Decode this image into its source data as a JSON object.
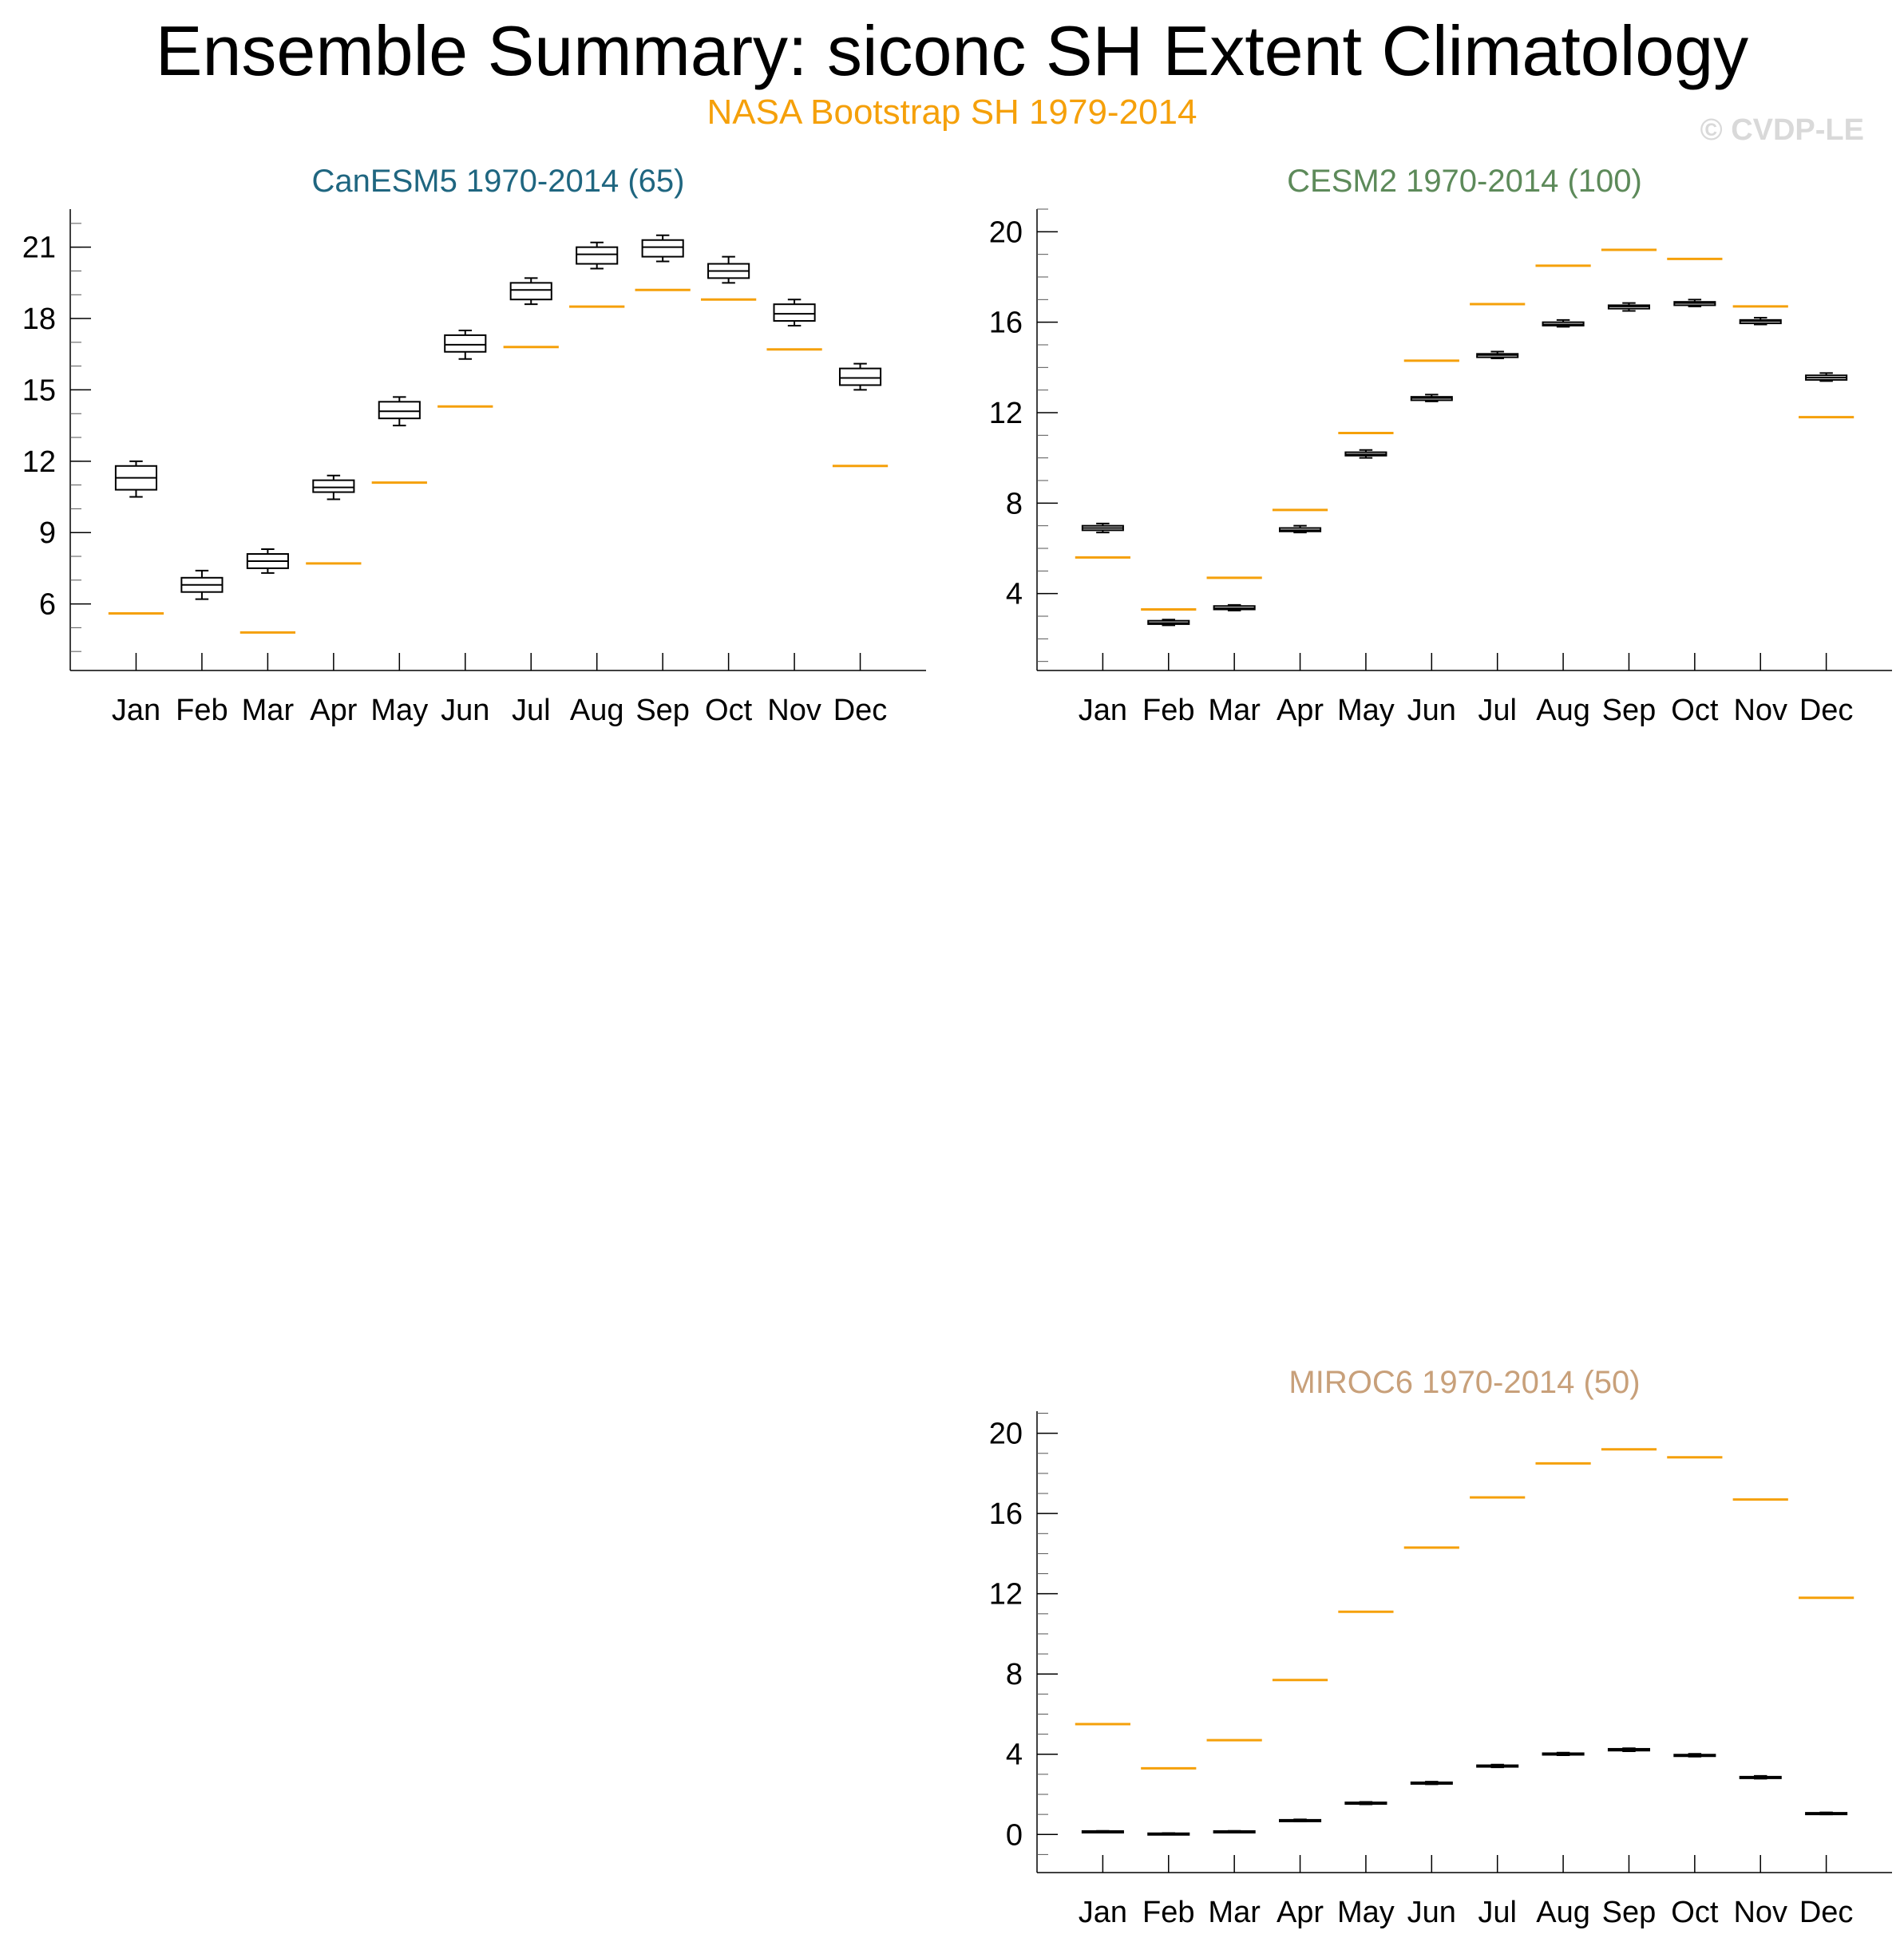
{
  "header": {
    "title": "Ensemble Summary: siconc SH Extent Climatology",
    "subtitle": "NASA Bootstrap SH 1979-2014",
    "watermark": "© CVDP-LE"
  },
  "colors": {
    "observation": "#f5a00a",
    "box": "#000000"
  },
  "chart_data": [
    {
      "type": "box",
      "title": "CanESM5 1970-2014 (65)",
      "title_color": "#1f6680",
      "categories": [
        "Jan",
        "Feb",
        "Mar",
        "Apr",
        "May",
        "Jun",
        "Jul",
        "Aug",
        "Sep",
        "Oct",
        "Nov",
        "Dec"
      ],
      "ylim": [
        3.2,
        22.6
      ],
      "yticks": [
        6,
        9,
        12,
        15,
        18,
        21
      ],
      "minor_step": 1,
      "observation": [
        5.6,
        null,
        4.8,
        7.7,
        11.1,
        14.3,
        16.8,
        18.5,
        19.2,
        18.8,
        16.7,
        11.8
      ],
      "boxes": [
        {
          "min": 10.5,
          "q1": 10.8,
          "median": 11.3,
          "q3": 11.8,
          "max": 12.0
        },
        {
          "min": 6.2,
          "q1": 6.5,
          "median": 6.8,
          "q3": 7.1,
          "max": 7.4
        },
        {
          "min": 7.3,
          "q1": 7.5,
          "median": 7.8,
          "q3": 8.1,
          "max": 8.3
        },
        {
          "min": 10.4,
          "q1": 10.7,
          "median": 10.9,
          "q3": 11.2,
          "max": 11.4
        },
        {
          "min": 13.5,
          "q1": 13.8,
          "median": 14.1,
          "q3": 14.5,
          "max": 14.7
        },
        {
          "min": 16.3,
          "q1": 16.6,
          "median": 16.9,
          "q3": 17.3,
          "max": 17.5
        },
        {
          "min": 18.6,
          "q1": 18.8,
          "median": 19.2,
          "q3": 19.5,
          "max": 19.7
        },
        {
          "min": 20.1,
          "q1": 20.3,
          "median": 20.7,
          "q3": 21.0,
          "max": 21.2
        },
        {
          "min": 20.4,
          "q1": 20.6,
          "median": 21.0,
          "q3": 21.3,
          "max": 21.5
        },
        {
          "min": 19.5,
          "q1": 19.7,
          "median": 20.0,
          "q3": 20.3,
          "max": 20.6
        },
        {
          "min": 17.7,
          "q1": 17.9,
          "median": 18.2,
          "q3": 18.6,
          "max": 18.8
        },
        {
          "min": 15.0,
          "q1": 15.2,
          "median": 15.5,
          "q3": 15.9,
          "max": 16.1
        }
      ]
    },
    {
      "type": "box",
      "title": "CESM2 1970-2014 (100)",
      "title_color": "#5d8a5a",
      "categories": [
        "Jan",
        "Feb",
        "Mar",
        "Apr",
        "May",
        "Jun",
        "Jul",
        "Aug",
        "Sep",
        "Oct",
        "Nov",
        "Dec"
      ],
      "ylim": [
        0.6,
        21.0
      ],
      "yticks": [
        4,
        8,
        12,
        16,
        20
      ],
      "minor_step": 1,
      "observation": [
        5.6,
        3.3,
        4.7,
        7.7,
        11.1,
        14.3,
        16.8,
        18.5,
        19.2,
        18.8,
        16.7,
        11.8
      ],
      "boxes": [
        {
          "min": 6.7,
          "q1": 6.8,
          "median": 6.9,
          "q3": 7.0,
          "max": 7.1
        },
        {
          "min": 2.6,
          "q1": 2.65,
          "median": 2.7,
          "q3": 2.8,
          "max": 2.85
        },
        {
          "min": 3.25,
          "q1": 3.3,
          "median": 3.35,
          "q3": 3.45,
          "max": 3.5
        },
        {
          "min": 6.7,
          "q1": 6.75,
          "median": 6.8,
          "q3": 6.9,
          "max": 7.0
        },
        {
          "min": 10.0,
          "q1": 10.1,
          "median": 10.15,
          "q3": 10.25,
          "max": 10.35
        },
        {
          "min": 12.5,
          "q1": 12.55,
          "median": 12.65,
          "q3": 12.7,
          "max": 12.8
        },
        {
          "min": 14.4,
          "q1": 14.45,
          "median": 14.55,
          "q3": 14.6,
          "max": 14.7
        },
        {
          "min": 15.8,
          "q1": 15.85,
          "median": 15.9,
          "q3": 16.0,
          "max": 16.1
        },
        {
          "min": 16.5,
          "q1": 16.6,
          "median": 16.7,
          "q3": 16.75,
          "max": 16.85
        },
        {
          "min": 16.7,
          "q1": 16.75,
          "median": 16.85,
          "q3": 16.9,
          "max": 17.0
        },
        {
          "min": 15.9,
          "q1": 15.95,
          "median": 16.05,
          "q3": 16.1,
          "max": 16.2
        },
        {
          "min": 13.4,
          "q1": 13.45,
          "median": 13.55,
          "q3": 13.65,
          "max": 13.75
        }
      ]
    },
    {
      "type": "box",
      "title": "MIROC6 1970-2014 (50)",
      "title_color": "#c8a07a",
      "categories": [
        "Jan",
        "Feb",
        "Mar",
        "Apr",
        "May",
        "Jun",
        "Jul",
        "Aug",
        "Sep",
        "Oct",
        "Nov",
        "Dec"
      ],
      "ylim": [
        -1.9,
        21.1
      ],
      "yticks": [
        0,
        4,
        8,
        12,
        16,
        20
      ],
      "minor_step": 1,
      "observation": [
        5.5,
        3.3,
        4.7,
        7.7,
        11.1,
        14.3,
        16.8,
        18.5,
        19.2,
        18.8,
        16.7,
        11.8
      ],
      "boxes": [
        {
          "min": 0.12,
          "q1": 0.14,
          "median": 0.15,
          "q3": 0.17,
          "max": 0.18
        },
        {
          "min": 0.03,
          "q1": 0.04,
          "median": 0.05,
          "q3": 0.06,
          "max": 0.07
        },
        {
          "min": 0.12,
          "q1": 0.14,
          "median": 0.15,
          "q3": 0.17,
          "max": 0.18
        },
        {
          "min": 0.65,
          "q1": 0.67,
          "median": 0.7,
          "q3": 0.73,
          "max": 0.75
        },
        {
          "min": 1.5,
          "q1": 1.52,
          "median": 1.55,
          "q3": 1.6,
          "max": 1.62
        },
        {
          "min": 2.5,
          "q1": 2.52,
          "median": 2.55,
          "q3": 2.6,
          "max": 2.63
        },
        {
          "min": 3.35,
          "q1": 3.38,
          "median": 3.4,
          "q3": 3.45,
          "max": 3.48
        },
        {
          "min": 3.95,
          "q1": 3.98,
          "median": 4.0,
          "q3": 4.05,
          "max": 4.08
        },
        {
          "min": 4.15,
          "q1": 4.18,
          "median": 4.22,
          "q3": 4.27,
          "max": 4.3
        },
        {
          "min": 3.88,
          "q1": 3.9,
          "median": 3.95,
          "q3": 3.98,
          "max": 4.02
        },
        {
          "min": 2.78,
          "q1": 2.8,
          "median": 2.85,
          "q3": 2.88,
          "max": 2.92
        },
        {
          "min": 1.0,
          "q1": 1.02,
          "median": 1.05,
          "q3": 1.08,
          "max": 1.1
        }
      ]
    }
  ]
}
